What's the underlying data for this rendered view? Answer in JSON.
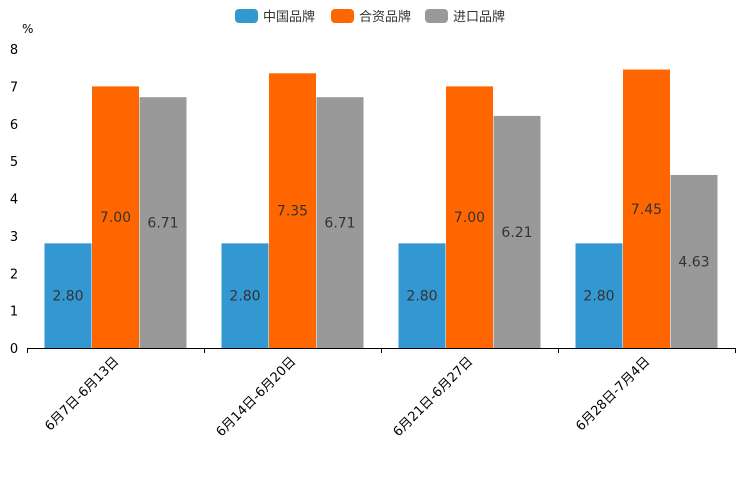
{
  "chart_data": {
    "type": "bar",
    "unit": "%",
    "categories": [
      "6月7日-6月13日",
      "6月14日-6月20日",
      "6月21日-6月27日",
      "6月28日-7月4日"
    ],
    "series": [
      {
        "name": "中国品牌",
        "color": "#3398d2",
        "values": [
          2.8,
          2.8,
          2.8,
          2.8
        ],
        "labels": [
          "2.80",
          "2.80",
          "2.80",
          "2.80"
        ]
      },
      {
        "name": "合资品牌",
        "color": "#ff6600",
        "values": [
          7.0,
          7.35,
          7.0,
          7.45
        ],
        "labels": [
          "7.00",
          "7.35",
          "7.00",
          "7.45"
        ]
      },
      {
        "name": "进口品牌",
        "color": "#999999",
        "values": [
          6.71,
          6.71,
          6.21,
          4.63
        ],
        "labels": [
          "6.71",
          "6.71",
          "6.21",
          "4.63"
        ]
      }
    ],
    "ylim": [
      0,
      8
    ],
    "yticks": [
      "0",
      "1",
      "2",
      "3",
      "4",
      "5",
      "6",
      "7",
      "8"
    ],
    "legend_position": "top-center",
    "grid": false
  }
}
